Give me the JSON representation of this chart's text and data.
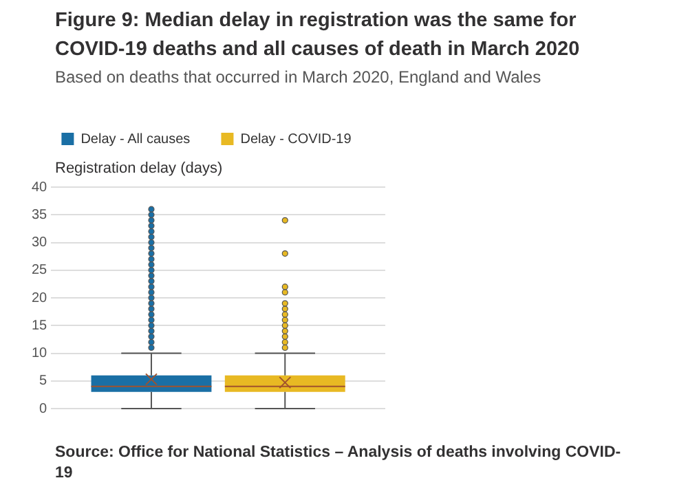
{
  "chart_data": {
    "type": "box",
    "title": "Figure 9: Median delay in registration was the same for COVID-19 deaths and all causes of death in March 2020",
    "subtitle": "Based on deaths that occurred in March 2020, England and Wales",
    "ylabel": "Registration delay (days)",
    "categories": [
      null
    ],
    "series": [
      {
        "name": "Delay - All causes",
        "color": "#1a6fa5",
        "boxes": [
          {
            "low": 0,
            "q1": 3,
            "median": 4,
            "q3": 6,
            "high": 10,
            "mean": 5.3,
            "outliers": [
              11,
              12,
              13,
              14,
              15,
              16,
              17,
              18,
              19,
              20,
              21,
              22,
              23,
              24,
              25,
              26,
              27,
              28,
              29,
              30,
              31,
              32,
              33,
              34,
              35,
              36
            ]
          }
        ]
      },
      {
        "name": "Delay - COVID-19",
        "color": "#e8b923",
        "boxes": [
          {
            "low": 0,
            "q1": 3,
            "median": 4,
            "q3": 6,
            "high": 10,
            "mean": 4.7,
            "outliers": [
              11,
              12,
              13,
              14,
              15,
              16,
              17,
              18,
              19,
              21,
              22,
              28,
              34
            ]
          }
        ]
      }
    ],
    "ylim": [
      0,
      40
    ],
    "yticks": [
      0,
      5,
      10,
      15,
      20,
      25,
      30,
      35,
      40
    ],
    "grid": "y",
    "legend": "top",
    "annotations": [
      "Source: Office for National Statistics – Analysis of deaths involving COVID-19"
    ]
  }
}
